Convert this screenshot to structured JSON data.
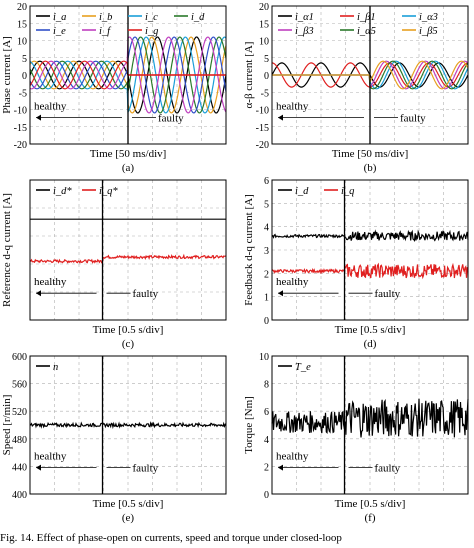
{
  "figure_caption": "Fig. 14. Effect of phase-open on currents, speed and torque under closed-loop",
  "chart_data": [
    {
      "id": "a",
      "type": "line",
      "sublabel": "(a)",
      "xlabel": "Time [50 ms/div]",
      "ylabel": "Phase current [A]",
      "ylim": [
        -20,
        20
      ],
      "yticks": [
        -20,
        -15,
        -10,
        -5,
        0,
        5,
        10,
        15,
        20
      ],
      "grid": true,
      "fault_at_fraction": 0.5,
      "annotations": {
        "healthy": "healthy",
        "faulty": "faulty"
      },
      "legend": {
        "placement": "top-left"
      },
      "series": [
        {
          "name": "i_a",
          "sub": "a",
          "color": "#000000",
          "amp_healthy": 4,
          "amp_faulty": 11,
          "phase_deg": 0
        },
        {
          "name": "i_b",
          "sub": "b",
          "color": "#e8a020",
          "amp_healthy": 4,
          "amp_faulty": 11,
          "phase_deg": 51
        },
        {
          "name": "i_c",
          "sub": "c",
          "color": "#1a9fd8",
          "amp_healthy": 4,
          "amp_faulty": 11,
          "phase_deg": 103
        },
        {
          "name": "i_d",
          "sub": "d",
          "color": "#2a7a2a",
          "amp_healthy": 4,
          "amp_faulty": 11,
          "phase_deg": 154
        },
        {
          "name": "i_e",
          "sub": "e",
          "color": "#3050c8",
          "amp_healthy": 4,
          "amp_faulty": 11,
          "phase_deg": 206
        },
        {
          "name": "i_f",
          "sub": "f",
          "color": "#c040c0",
          "amp_healthy": 4,
          "amp_faulty": 11,
          "phase_deg": 257
        },
        {
          "name": "i_g",
          "sub": "g",
          "color": "#e02020",
          "amp_healthy": 4,
          "amp_faulty": 0,
          "phase_deg": 309
        }
      ]
    },
    {
      "id": "b",
      "type": "line",
      "sublabel": "(b)",
      "xlabel": "Time [50 ms/div]",
      "ylabel": "α-β current [A]",
      "ylim": [
        -20,
        20
      ],
      "yticks": [
        -20,
        -15,
        -10,
        -5,
        0,
        5,
        10,
        15,
        20
      ],
      "grid": true,
      "fault_at_fraction": 0.5,
      "annotations": {
        "healthy": "healthy",
        "faulty": "faulty"
      },
      "legend": {
        "placement": "top"
      },
      "series": [
        {
          "name": "i_α1",
          "sub": "α1",
          "color": "#000000",
          "amp_healthy": 3.5,
          "amp_faulty": 3.5,
          "phase_deg": 0
        },
        {
          "name": "i_β1",
          "sub": "β1",
          "color": "#e02020",
          "amp_healthy": 3.5,
          "amp_faulty": 3.5,
          "phase_deg": 90
        },
        {
          "name": "i_α3",
          "sub": "α3",
          "color": "#1a9fd8",
          "amp_healthy": 0,
          "amp_faulty": 4,
          "phase_deg": 30
        },
        {
          "name": "i_β3",
          "sub": "β3",
          "color": "#c040c0",
          "amp_healthy": 0,
          "amp_faulty": 4,
          "phase_deg": 120
        },
        {
          "name": "i_α5",
          "sub": "α5",
          "color": "#2a7a2a",
          "amp_healthy": 0,
          "amp_faulty": 4,
          "phase_deg": 60
        },
        {
          "name": "i_β5",
          "sub": "β5",
          "color": "#e8a020",
          "amp_healthy": 0,
          "amp_faulty": 4,
          "phase_deg": 150
        }
      ]
    },
    {
      "id": "c",
      "type": "line",
      "sublabel": "(c)",
      "xlabel": "Time [0.5 s/div]",
      "ylabel": "Reference d-q current [A]",
      "ylim": [
        0,
        5
      ],
      "yticks": [],
      "grid": true,
      "fault_at_fraction": 0.37,
      "annotations": {
        "healthy": "healthy",
        "faulty": "faulty"
      },
      "legend": {
        "placement": "top-left"
      },
      "series": [
        {
          "name": "i_d*",
          "sub": "d",
          "color": "#000000",
          "healthy": 3.6,
          "faulty": 3.6,
          "ripple_healthy": 0.0,
          "ripple_faulty": 0.0
        },
        {
          "name": "i_q*",
          "sub": "q",
          "color": "#e02020",
          "healthy": 2.1,
          "faulty": 2.25,
          "ripple_healthy": 0.05,
          "ripple_faulty": 0.05
        }
      ]
    },
    {
      "id": "d",
      "type": "line",
      "sublabel": "(d)",
      "xlabel": "Time [0.5 s/div]",
      "ylabel": "Feedback d-q current [A]",
      "ylim": [
        0,
        6
      ],
      "yticks": [
        0,
        1,
        2,
        3,
        4,
        5,
        6
      ],
      "grid": true,
      "fault_at_fraction": 0.37,
      "annotations": {
        "healthy": "healthy",
        "faulty": "faulty"
      },
      "legend": {
        "placement": "top-left"
      },
      "series": [
        {
          "name": "i_d",
          "sub": "d",
          "color": "#000000",
          "healthy": 3.6,
          "faulty": 3.6,
          "ripple_healthy": 0.06,
          "ripple_faulty": 0.2
        },
        {
          "name": "i_q",
          "sub": "q",
          "color": "#e02020",
          "healthy": 2.1,
          "faulty": 2.1,
          "ripple_healthy": 0.06,
          "ripple_faulty": 0.3
        }
      ]
    },
    {
      "id": "e",
      "type": "line",
      "sublabel": "(e)",
      "xlabel": "Time [0.5 s/div]",
      "ylabel": "Speed [r/min]",
      "ylim": [
        400,
        600
      ],
      "yticks": [
        400,
        440,
        480,
        520,
        560,
        600
      ],
      "grid": true,
      "fault_at_fraction": 0.37,
      "annotations": {
        "healthy": "healthy",
        "faulty": "faulty"
      },
      "legend": {
        "placement": "top-left"
      },
      "series": [
        {
          "name": "n",
          "sub": "",
          "color": "#000000",
          "healthy": 500,
          "faulty": 500,
          "ripple_healthy": 2.5,
          "ripple_faulty": 2.5
        }
      ]
    },
    {
      "id": "f",
      "type": "line",
      "sublabel": "(f)",
      "xlabel": "Time [0.5 s/div]",
      "ylabel": "Torque [Nm]",
      "ylim": [
        0,
        10
      ],
      "yticks": [
        0,
        2,
        4,
        6,
        8,
        10
      ],
      "grid": true,
      "fault_at_fraction": 0.37,
      "annotations": {
        "healthy": "healthy",
        "faulty": "faulty"
      },
      "legend": {
        "placement": "top-left"
      },
      "series": [
        {
          "name": "T_e",
          "sub": "e",
          "color": "#000000",
          "healthy": 5.2,
          "faulty": 5.5,
          "ripple_healthy": 0.8,
          "ripple_faulty": 1.4
        }
      ]
    }
  ]
}
